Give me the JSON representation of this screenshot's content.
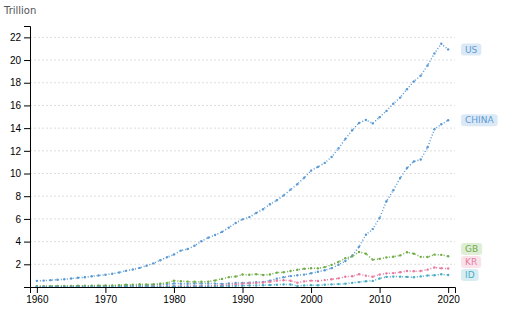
{
  "chart_data": {
    "type": "line",
    "y_label": "Trillion",
    "x": [
      1960,
      1961,
      1962,
      1963,
      1964,
      1965,
      1966,
      1967,
      1968,
      1969,
      1970,
      1971,
      1972,
      1973,
      1974,
      1975,
      1976,
      1977,
      1978,
      1979,
      1980,
      1981,
      1982,
      1983,
      1984,
      1985,
      1986,
      1987,
      1988,
      1989,
      1990,
      1991,
      1992,
      1993,
      1994,
      1995,
      1996,
      1997,
      1998,
      1999,
      2000,
      2001,
      2002,
      2003,
      2004,
      2005,
      2006,
      2007,
      2008,
      2009,
      2010,
      2011,
      2012,
      2013,
      2014,
      2015,
      2016,
      2017,
      2018,
      2019,
      2020
    ],
    "series": [
      {
        "name": "US",
        "color": "#5b9bd5",
        "values": [
          0.543,
          0.563,
          0.605,
          0.638,
          0.685,
          0.743,
          0.815,
          0.861,
          0.942,
          1.019,
          1.073,
          1.164,
          1.279,
          1.425,
          1.545,
          1.685,
          1.875,
          2.085,
          2.352,
          2.631,
          2.858,
          3.207,
          3.343,
          3.634,
          4.037,
          4.339,
          4.579,
          4.855,
          5.236,
          5.642,
          5.963,
          6.158,
          6.52,
          6.858,
          7.287,
          7.64,
          8.073,
          8.577,
          9.063,
          9.631,
          10.252,
          10.582,
          10.936,
          11.458,
          12.214,
          13.037,
          13.815,
          14.452,
          14.719,
          14.419,
          14.964,
          15.518,
          16.155,
          16.692,
          17.427,
          18.121,
          18.624,
          19.519,
          20.58,
          21.433,
          20.936
        ]
      },
      {
        "name": "CHINA",
        "color": "#5b9bd5",
        "values": [
          0.06,
          0.05,
          0.047,
          0.05,
          0.059,
          0.07,
          0.077,
          0.072,
          0.07,
          0.079,
          0.092,
          0.098,
          0.112,
          0.138,
          0.141,
          0.161,
          0.153,
          0.172,
          0.214,
          0.261,
          0.302,
          0.296,
          0.284,
          0.302,
          0.31,
          0.309,
          0.301,
          0.272,
          0.312,
          0.347,
          0.361,
          0.383,
          0.427,
          0.444,
          0.564,
          0.735,
          0.863,
          0.962,
          1.029,
          1.094,
          1.211,
          1.339,
          1.471,
          1.66,
          1.956,
          2.286,
          2.752,
          3.55,
          4.598,
          5.102,
          6.087,
          7.552,
          8.532,
          9.607,
          10.482,
          11.065,
          11.233,
          12.31,
          13.895,
          14.34,
          14.688
        ]
      },
      {
        "name": "GB",
        "color": "#70ad47",
        "values": [
          0.073,
          0.076,
          0.081,
          0.086,
          0.092,
          0.101,
          0.109,
          0.113,
          0.122,
          0.13,
          0.131,
          0.143,
          0.166,
          0.204,
          0.2,
          0.236,
          0.225,
          0.243,
          0.299,
          0.364,
          0.557,
          0.513,
          0.476,
          0.46,
          0.457,
          0.476,
          0.579,
          0.714,
          0.87,
          0.924,
          1.095,
          1.085,
          1.125,
          1.062,
          1.099,
          1.266,
          1.296,
          1.405,
          1.518,
          1.604,
          1.657,
          1.644,
          1.754,
          1.951,
          2.218,
          2.53,
          2.701,
          3.084,
          2.928,
          2.412,
          2.479,
          2.607,
          2.661,
          2.786,
          3.065,
          2.929,
          2.659,
          2.638,
          2.856,
          2.831,
          2.708
        ]
      },
      {
        "name": "KR",
        "color": "#e879a0",
        "values": [
          0.004,
          0.002,
          0.003,
          0.004,
          0.003,
          0.003,
          0.004,
          0.005,
          0.006,
          0.007,
          0.009,
          0.01,
          0.011,
          0.014,
          0.019,
          0.021,
          0.029,
          0.037,
          0.051,
          0.066,
          0.065,
          0.071,
          0.077,
          0.086,
          0.096,
          0.1,
          0.113,
          0.146,
          0.198,
          0.244,
          0.283,
          0.328,
          0.355,
          0.392,
          0.461,
          0.559,
          0.598,
          0.557,
          0.382,
          0.497,
          0.562,
          0.533,
          0.609,
          0.68,
          0.764,
          0.898,
          0.951,
          1.122,
          1.002,
          0.902,
          1.094,
          1.202,
          1.223,
          1.306,
          1.411,
          1.383,
          1.415,
          1.531,
          1.721,
          1.647,
          1.631
        ]
      },
      {
        "name": "ID",
        "color": "#4bacc6",
        "values": [
          0.012,
          0.012,
          0.013,
          0.013,
          0.014,
          0.015,
          0.016,
          0.015,
          0.016,
          0.016,
          0.012,
          0.012,
          0.014,
          0.016,
          0.02,
          0.021,
          0.021,
          0.024,
          0.03,
          0.035,
          0.041,
          0.033,
          0.031,
          0.035,
          0.039,
          0.045,
          0.049,
          0.063,
          0.09,
          0.098,
          0.114,
          0.128,
          0.14,
          0.158,
          0.177,
          0.202,
          0.227,
          0.216,
          0.095,
          0.14,
          0.165,
          0.16,
          0.195,
          0.234,
          0.257,
          0.286,
          0.365,
          0.432,
          0.511,
          0.539,
          0.755,
          0.893,
          0.918,
          0.912,
          0.888,
          0.862,
          0.932,
          1.015,
          1.042,
          1.119,
          1.059
        ]
      }
    ],
    "line_style": "dotted",
    "marker": "circle",
    "xlim": [
      1959,
      2021
    ],
    "xticks": [
      1960,
      1970,
      1980,
      1990,
      2000,
      2010,
      2020
    ],
    "ylim": [
      0,
      23
    ],
    "yticks": [
      2,
      4,
      6,
      8,
      10,
      12,
      14,
      16,
      18,
      20,
      22
    ],
    "grid": true
  }
}
